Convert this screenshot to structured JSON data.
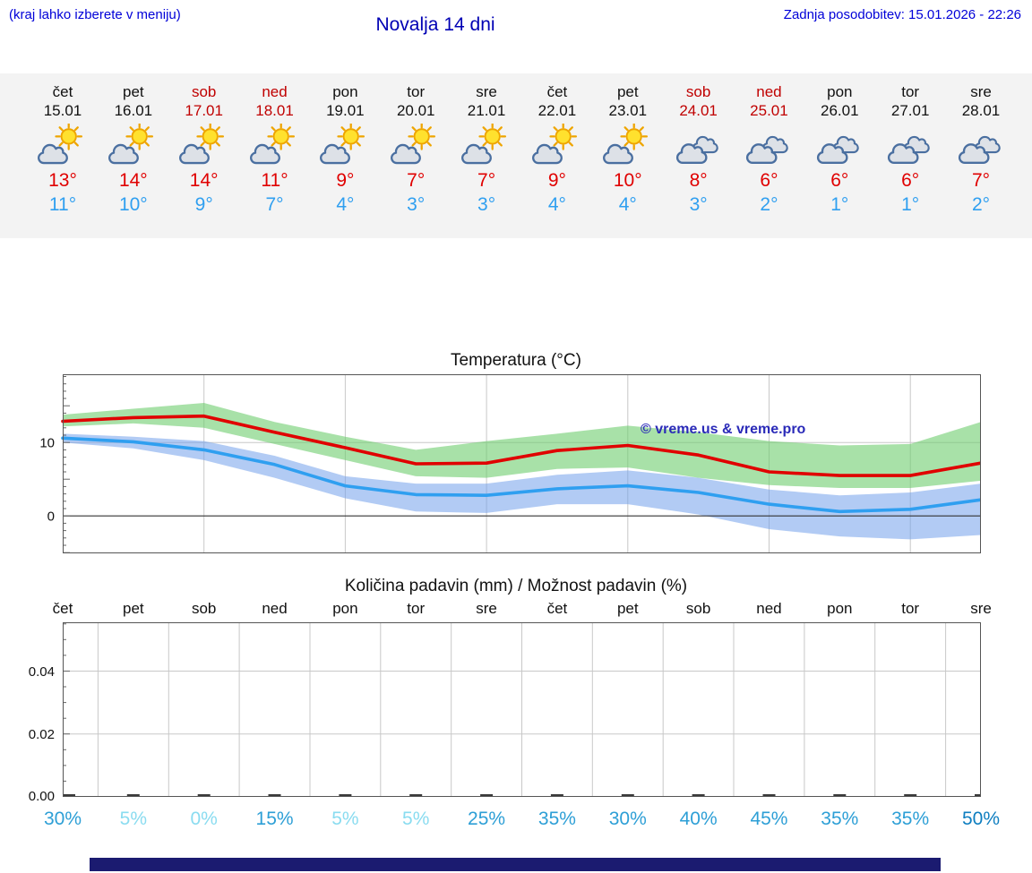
{
  "header": {
    "left_note": "(kraj lahko izberete v meniju)",
    "title": "Novalja 14 dni",
    "last_update": "Zadnja posodobitev: 15.01.2026 - 22:26"
  },
  "colors": {
    "link_blue": "#0000d8",
    "title_blue": "#0000b4",
    "weekend_red": "#c00000",
    "temp_high": "#e00000",
    "temp_low": "#2f9ff0",
    "sun": "#ffe12e",
    "sun_ray": "#eea500",
    "cloud_fill": "#dde1e7",
    "cloud_stroke": "#4a6fa0",
    "grid": "#c8c8c8",
    "zero_line": "#333333",
    "border": "#555555",
    "watermark_blue": "#2a2ab8",
    "prob_light": "#8adcf0",
    "prob_medium": "#2d9fd6",
    "prob_dark": "#0e7ec0",
    "footer_bar": "#1b1b70",
    "strip_bg": "#f3f3f3"
  },
  "forecast": {
    "days": [
      {
        "day": "čet",
        "date": "15.01",
        "weekend": false,
        "icon": "sun-cloud",
        "high": "13°",
        "low": "11°"
      },
      {
        "day": "pet",
        "date": "16.01",
        "weekend": false,
        "icon": "sun-cloud",
        "high": "14°",
        "low": "10°"
      },
      {
        "day": "sob",
        "date": "17.01",
        "weekend": true,
        "icon": "sun-cloud",
        "high": "14°",
        "low": "9°"
      },
      {
        "day": "ned",
        "date": "18.01",
        "weekend": true,
        "icon": "sun-cloud",
        "high": "11°",
        "low": "7°"
      },
      {
        "day": "pon",
        "date": "19.01",
        "weekend": false,
        "icon": "sun-cloud",
        "high": "9°",
        "low": "4°"
      },
      {
        "day": "tor",
        "date": "20.01",
        "weekend": false,
        "icon": "sun-cloud",
        "high": "7°",
        "low": "3°"
      },
      {
        "day": "sre",
        "date": "21.01",
        "weekend": false,
        "icon": "sun-cloud",
        "high": "7°",
        "low": "3°"
      },
      {
        "day": "čet",
        "date": "22.01",
        "weekend": false,
        "icon": "sun-cloud",
        "high": "9°",
        "low": "4°"
      },
      {
        "day": "pet",
        "date": "23.01",
        "weekend": false,
        "icon": "sun-cloud",
        "high": "10°",
        "low": "4°"
      },
      {
        "day": "sob",
        "date": "24.01",
        "weekend": true,
        "icon": "cloudy",
        "high": "8°",
        "low": "3°"
      },
      {
        "day": "ned",
        "date": "25.01",
        "weekend": true,
        "icon": "cloudy",
        "high": "6°",
        "low": "2°"
      },
      {
        "day": "pon",
        "date": "26.01",
        "weekend": false,
        "icon": "cloudy",
        "high": "6°",
        "low": "1°"
      },
      {
        "day": "tor",
        "date": "27.01",
        "weekend": false,
        "icon": "cloudy",
        "high": "6°",
        "low": "1°"
      },
      {
        "day": "sre",
        "date": "28.01",
        "weekend": false,
        "icon": "cloudy",
        "high": "7°",
        "low": "2°"
      }
    ]
  },
  "chart_data": [
    {
      "type": "line",
      "title": "Temperatura (°C)",
      "watermark": "© vreme.us & vreme.pro",
      "x_labels": [
        "15.01",
        "16.01",
        "17.01",
        "18.01",
        "19.01",
        "20.01",
        "21.01",
        "22.01",
        "23.01",
        "24.01",
        "25.01",
        "26.01",
        "27.01",
        "28.01"
      ],
      "ylim": [
        -5.1,
        19.3
      ],
      "yticks": [
        0,
        10
      ],
      "ytick_labels": [
        "0",
        "10"
      ],
      "grid": "on",
      "x_gridline_step_days": 2,
      "series": [
        {
          "name": "high",
          "color": "#e00000",
          "values": [
            12.9,
            13.4,
            13.6,
            11.4,
            9.3,
            7.1,
            7.2,
            8.9,
            9.6,
            8.3,
            6.0,
            5.5,
            5.5,
            7.2
          ]
        },
        {
          "name": "low",
          "color": "#2f9ff0",
          "values": [
            10.6,
            10.1,
            9.0,
            7.0,
            4.1,
            2.9,
            2.8,
            3.7,
            4.1,
            3.2,
            1.6,
            0.6,
            0.9,
            2.2
          ]
        }
      ],
      "bands": [
        {
          "name": "high_range",
          "color": "rgba(110,205,110,0.60)",
          "upper": [
            13.8,
            14.6,
            15.4,
            12.8,
            10.8,
            9.0,
            10.2,
            11.2,
            12.3,
            11.4,
            10.2,
            9.6,
            9.8,
            12.8
          ],
          "lower": [
            12.2,
            12.6,
            12.0,
            9.8,
            7.6,
            5.4,
            5.2,
            6.4,
            6.6,
            5.2,
            4.2,
            3.8,
            3.8,
            4.8
          ]
        },
        {
          "name": "low_range",
          "color": "rgba(115,160,235,0.55)",
          "upper": [
            11.2,
            10.8,
            10.2,
            8.2,
            5.4,
            4.4,
            4.4,
            5.6,
            6.2,
            5.2,
            3.6,
            2.8,
            3.2,
            4.4
          ],
          "lower": [
            10.0,
            9.2,
            7.6,
            5.2,
            2.4,
            0.6,
            0.4,
            1.6,
            1.6,
            0.2,
            -1.8,
            -2.8,
            -3.2,
            -2.6
          ]
        }
      ]
    },
    {
      "type": "bar",
      "title": "Količina padavin (mm) / Možnost padavin (%)",
      "categories": [
        "čet",
        "pet",
        "sob",
        "ned",
        "pon",
        "tor",
        "sre",
        "čet",
        "pet",
        "sob",
        "ned",
        "pon",
        "tor",
        "sre"
      ],
      "values": [
        0,
        0,
        0,
        0,
        0,
        0,
        0,
        0,
        0,
        0,
        0,
        0,
        0,
        0
      ],
      "ylim": [
        0,
        0.0555
      ],
      "yticks": [
        0,
        0.02,
        0.04
      ],
      "ytick_labels": [
        "0.00",
        "0.02",
        "0.04"
      ],
      "probabilities": [
        {
          "value": "30%",
          "level": "medium"
        },
        {
          "value": "5%",
          "level": "light"
        },
        {
          "value": "0%",
          "level": "light"
        },
        {
          "value": "15%",
          "level": "medium"
        },
        {
          "value": "5%",
          "level": "light"
        },
        {
          "value": "5%",
          "level": "light"
        },
        {
          "value": "25%",
          "level": "medium"
        },
        {
          "value": "35%",
          "level": "medium"
        },
        {
          "value": "30%",
          "level": "medium"
        },
        {
          "value": "40%",
          "level": "medium"
        },
        {
          "value": "45%",
          "level": "medium"
        },
        {
          "value": "35%",
          "level": "medium"
        },
        {
          "value": "35%",
          "level": "medium"
        },
        {
          "value": "50%",
          "level": "dark"
        }
      ]
    }
  ]
}
